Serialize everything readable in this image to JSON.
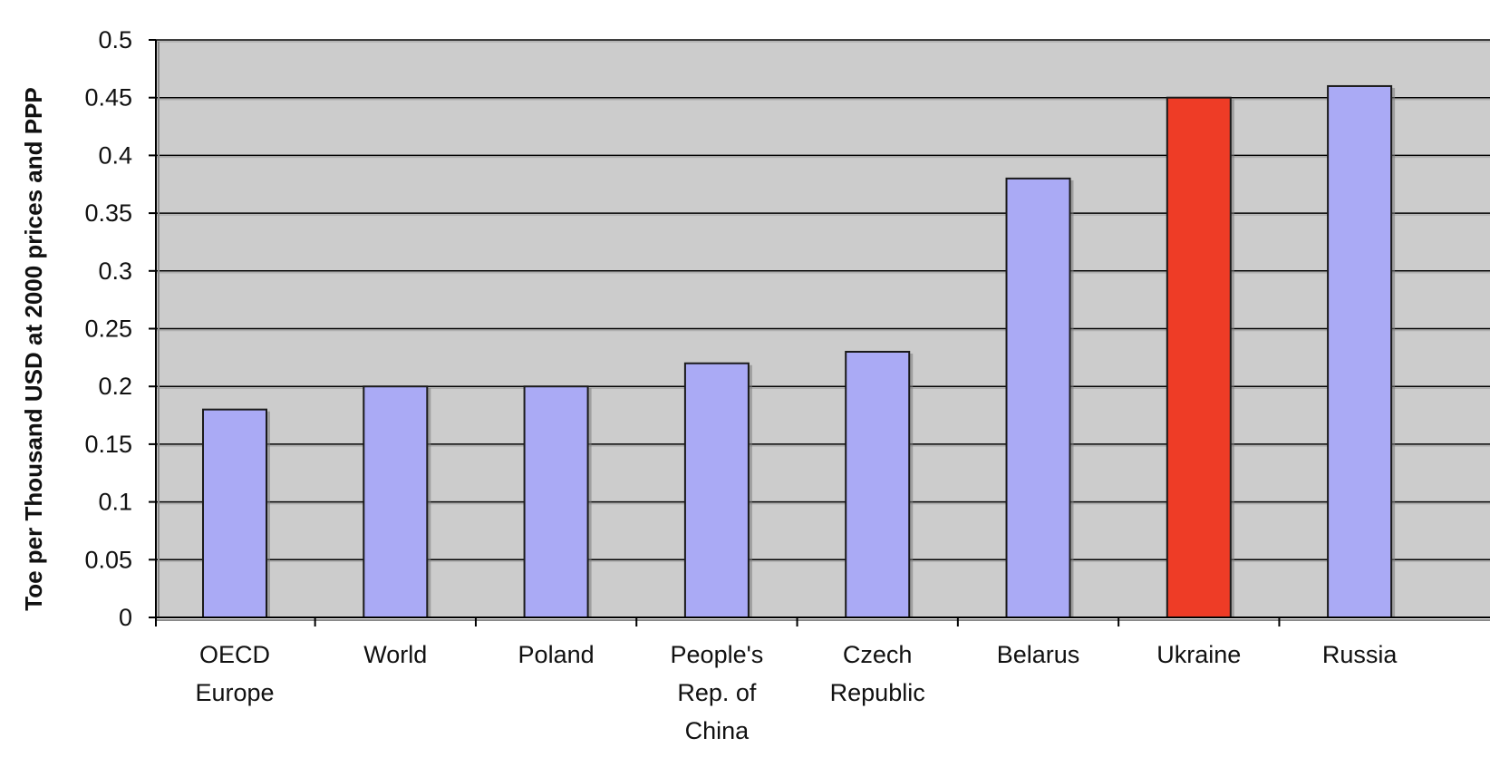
{
  "chart_data": {
    "type": "bar",
    "title": "",
    "xlabel": "",
    "ylabel": "Toe per Thousand USD at 2000 prices and PPP",
    "ylim": [
      0,
      0.5
    ],
    "yticks": [
      "0",
      "0.05",
      "0.1",
      "0.15",
      "0.2",
      "0.25",
      "0.3",
      "0.35",
      "0.4",
      "0.45",
      "0.5"
    ],
    "ytick_values": [
      0,
      0.05,
      0.1,
      0.15,
      0.2,
      0.25,
      0.3,
      0.35,
      0.4,
      0.45,
      0.5
    ],
    "grid": true,
    "legend": "none",
    "categories": [
      [
        "OECD",
        "Europe"
      ],
      [
        "World"
      ],
      [
        "Poland"
      ],
      [
        "People's",
        "Rep. of",
        "China"
      ],
      [
        "Czech",
        "Republic"
      ],
      [
        "Belarus"
      ],
      [
        "Ukraine"
      ],
      [
        "Russia"
      ]
    ],
    "values": [
      0.18,
      0.2,
      0.2,
      0.22,
      0.23,
      0.38,
      0.45,
      0.46
    ],
    "bar_colors": [
      "#aaaaf5",
      "#aaaaf5",
      "#aaaaf5",
      "#aaaaf5",
      "#aaaaf5",
      "#aaaaf5",
      "#ee3c26",
      "#aaaaf5"
    ],
    "plot_background": "#cccccc",
    "gridline_color": "#000000"
  }
}
